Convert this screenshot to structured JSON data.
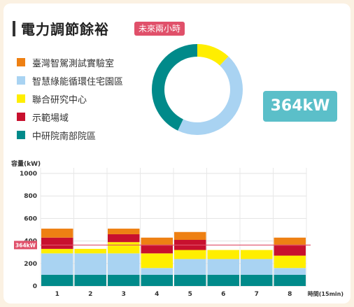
{
  "header": {
    "title": "電力調節餘裕",
    "badge": "未來兩小時"
  },
  "legend": [
    {
      "label": "臺灣智駕測試實驗室",
      "color": "#ee8013"
    },
    {
      "label": "智慧綠能循環住宅園區",
      "color": "#a9d3f2"
    },
    {
      "label": "聯合研究中心",
      "color": "#ffee00"
    },
    {
      "label": "示範場域",
      "color": "#c8102e"
    },
    {
      "label": "中研院南部院區",
      "color": "#008a8a"
    }
  ],
  "donut": {
    "segments": [
      {
        "color": "#ffee00",
        "fraction": 0.12
      },
      {
        "color": "#a9d3f2",
        "fraction": 0.45
      },
      {
        "color": "#008a8a",
        "fraction": 0.43
      }
    ]
  },
  "power": {
    "value": "364kW"
  },
  "chart_data": {
    "type": "bar",
    "stacked": true,
    "ylabel": "容量(kW)",
    "xlabel": "時間(15min)",
    "ylim": [
      0,
      1050
    ],
    "yticks": [
      "0",
      "200",
      "400",
      "600",
      "800",
      "1000"
    ],
    "categories": [
      "1",
      "2",
      "3",
      "4",
      "5",
      "6",
      "7",
      "8"
    ],
    "series": [
      {
        "color": "#008a8a",
        "values": [
          100,
          100,
          100,
          100,
          100,
          100,
          100,
          100
        ]
      },
      {
        "color": "#a9d3f2",
        "values": [
          190,
          190,
          190,
          60,
          140,
          140,
          140,
          60
        ]
      },
      {
        "color": "#ffee00",
        "values": [
          40,
          40,
          100,
          130,
          80,
          80,
          80,
          110
        ]
      },
      {
        "color": "#c8102e",
        "values": [
          100,
          0,
          70,
          70,
          90,
          0,
          0,
          90
        ]
      },
      {
        "color": "#ee8013",
        "values": [
          80,
          0,
          50,
          70,
          70,
          0,
          0,
          70
        ]
      }
    ],
    "reference_line": {
      "value": 364,
      "label": "364kW",
      "color": "#e0506a"
    }
  }
}
